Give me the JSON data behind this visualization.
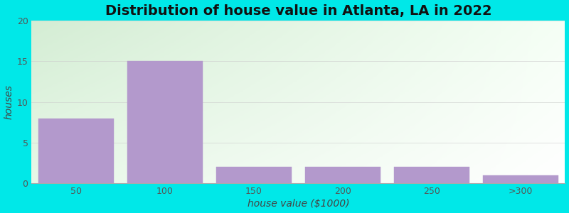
{
  "title": "Distribution of house value in Atlanta, LA in 2022",
  "xlabel": "house value ($1000)",
  "ylabel": "houses",
  "categories": [
    "50",
    "100",
    "150",
    "200",
    "250",
    ">300"
  ],
  "values": [
    8,
    15,
    2,
    2,
    2,
    1
  ],
  "bar_color": "#b399cc",
  "bar_edge_color": "#b399cc",
  "ylim": [
    0,
    20
  ],
  "yticks": [
    0,
    5,
    10,
    15,
    20
  ],
  "outer_bg": "#00e8e8",
  "plot_bg_topleft": "#d8efd8",
  "plot_bg_right": "#f8fff8",
  "plot_bg_bottom": "#ffffff",
  "grid_color": "#cccccc",
  "grid_alpha": 0.8,
  "title_fontsize": 14,
  "axis_fontsize": 10,
  "tick_fontsize": 9,
  "bar_width": 0.85,
  "figsize": [
    8.0,
    3.0
  ],
  "dpi": 100
}
